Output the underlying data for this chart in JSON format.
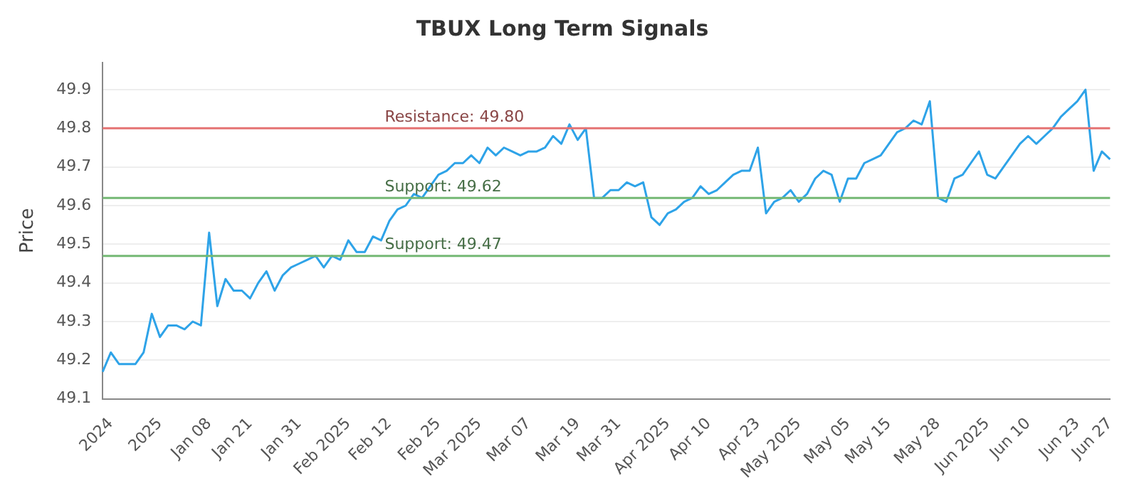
{
  "chart_data": {
    "type": "line",
    "title": "TBUX Long Term Signals",
    "ylabel": "Price",
    "categories": [
      null,
      "2024",
      null,
      null,
      null,
      null,
      null,
      "2025",
      null,
      null,
      null,
      null,
      null,
      "Jan 08",
      null,
      null,
      null,
      null,
      "Jan 21",
      null,
      null,
      null,
      null,
      null,
      "Jan 31",
      null,
      null,
      null,
      null,
      null,
      "Feb 2025",
      null,
      null,
      null,
      null,
      "Feb 12",
      null,
      null,
      null,
      null,
      null,
      "Feb 25",
      null,
      null,
      null,
      null,
      "Mar 2025",
      null,
      null,
      null,
      null,
      null,
      "Mar 07",
      null,
      null,
      null,
      null,
      null,
      "Mar 19",
      null,
      null,
      null,
      null,
      "Mar 31",
      null,
      null,
      null,
      null,
      null,
      "Apr 2025",
      null,
      null,
      null,
      null,
      "Apr 10",
      null,
      null,
      null,
      null,
      null,
      "Apr 23",
      null,
      null,
      null,
      null,
      "May 2025",
      null,
      null,
      null,
      null,
      null,
      "May 05",
      null,
      null,
      null,
      null,
      "May 15",
      null,
      null,
      null,
      null,
      null,
      "May 28",
      null,
      null,
      null,
      null,
      null,
      "Jun 2025",
      null,
      null,
      null,
      null,
      "Jun 10",
      null,
      null,
      null,
      null,
      null,
      "Jun 23",
      null,
      null,
      null,
      "Jun 27"
    ],
    "series": [
      {
        "color": "#2ea3e8",
        "values": [
          49.17,
          49.22,
          49.19,
          49.19,
          49.19,
          49.22,
          49.32,
          49.26,
          49.29,
          49.29,
          49.28,
          49.3,
          49.29,
          49.53,
          49.34,
          49.41,
          49.38,
          49.38,
          49.36,
          49.4,
          49.43,
          49.38,
          49.42,
          49.44,
          49.45,
          49.46,
          49.47,
          49.44,
          49.47,
          49.46,
          49.51,
          49.48,
          49.48,
          49.52,
          49.51,
          49.56,
          49.59,
          49.6,
          49.63,
          49.62,
          49.65,
          49.68,
          49.69,
          49.71,
          49.71,
          49.73,
          49.71,
          49.75,
          49.73,
          49.75,
          49.74,
          49.73,
          49.74,
          49.74,
          49.75,
          49.78,
          49.76,
          49.81,
          49.77,
          49.8,
          49.62,
          49.62,
          49.64,
          49.64,
          49.66,
          49.65,
          49.66,
          49.57,
          49.55,
          49.58,
          49.59,
          49.61,
          49.62,
          49.65,
          49.63,
          49.64,
          49.66,
          49.68,
          49.69,
          49.69,
          49.75,
          49.58,
          49.61,
          49.62,
          49.64,
          49.61,
          49.63,
          49.67,
          49.69,
          49.68,
          49.61,
          49.67,
          49.67,
          49.71,
          49.72,
          49.73,
          49.76,
          49.79,
          49.8,
          49.82,
          49.81,
          49.87,
          49.62,
          49.61,
          49.67,
          49.68,
          49.71,
          49.74,
          49.68,
          49.67,
          49.7,
          49.73,
          49.76,
          49.78,
          49.76,
          49.78,
          49.8,
          49.83,
          49.85,
          49.87,
          49.9,
          49.69,
          49.74,
          49.72
        ]
      }
    ],
    "ylim": [
      49.1,
      49.97
    ],
    "yticks": [
      49.1,
      49.2,
      49.3,
      49.4,
      49.5,
      49.6,
      49.7,
      49.8,
      49.9
    ],
    "grid": "y",
    "legend": false,
    "marker": "none",
    "line_style": "solid",
    "ref_lines": [
      {
        "axis": "y",
        "value": 49.8,
        "label": "Resistance: 49.80",
        "color": "#e57373"
      },
      {
        "axis": "y",
        "value": 49.62,
        "label": "Support: 49.62",
        "color": "#74b874"
      },
      {
        "axis": "y",
        "value": 49.47,
        "label": "Support: 49.47",
        "color": "#74b874"
      }
    ]
  }
}
